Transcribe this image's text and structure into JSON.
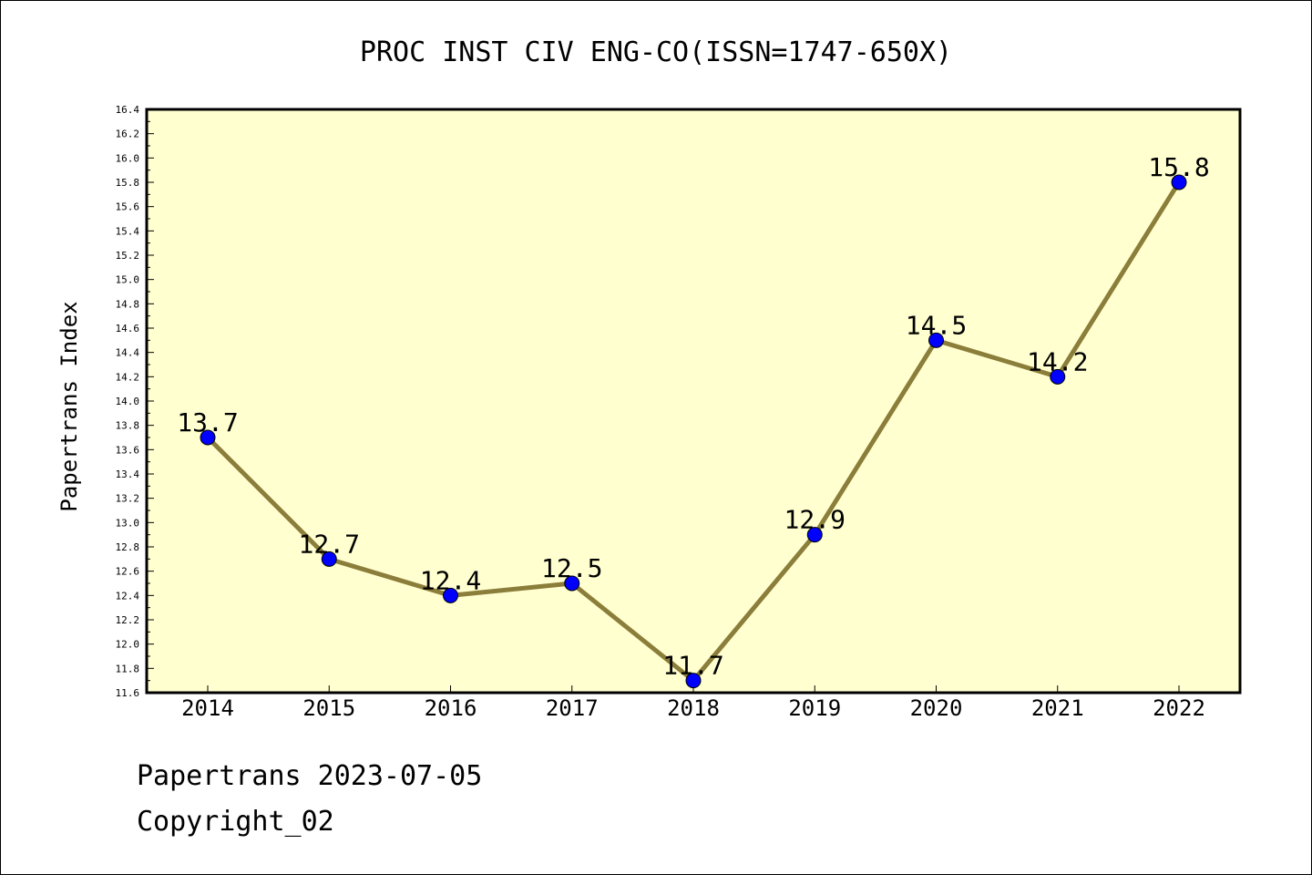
{
  "chart_data": {
    "type": "line",
    "title": "PROC INST CIV ENG-CO(ISSN=1747-650X)",
    "xlabel": "",
    "ylabel": "Papertrans Index",
    "categories": [
      "2014",
      "2015",
      "2016",
      "2017",
      "2018",
      "2019",
      "2020",
      "2021",
      "2022"
    ],
    "series": [
      {
        "values": [
          13.7,
          12.7,
          12.4,
          12.5,
          11.7,
          12.9,
          14.5,
          14.2,
          15.8
        ],
        "labels": [
          "13.7",
          "12.7",
          "12.4",
          "12.5",
          "11.7",
          "12.9",
          "14.5",
          "14.2",
          "15.8"
        ]
      }
    ],
    "ylim": [
      11.6,
      16.4
    ],
    "yticks": [
      "11.6",
      "11.8",
      "12.0",
      "12.2",
      "12.4",
      "12.6",
      "12.8",
      "13.0",
      "13.2",
      "13.4",
      "13.6",
      "13.8",
      "14.0",
      "14.2",
      "14.4",
      "14.6",
      "14.8",
      "15.0",
      "15.2",
      "15.4",
      "15.6",
      "15.8",
      "16.0",
      "16.2",
      "16.4"
    ],
    "grid": false,
    "colors": {
      "plot_background": "#ffffd0",
      "line": "#8b7d3a",
      "marker": "#0000ff"
    }
  },
  "footer": {
    "line1": "Papertrans 2023-07-05",
    "line2": "Copyright_02"
  }
}
